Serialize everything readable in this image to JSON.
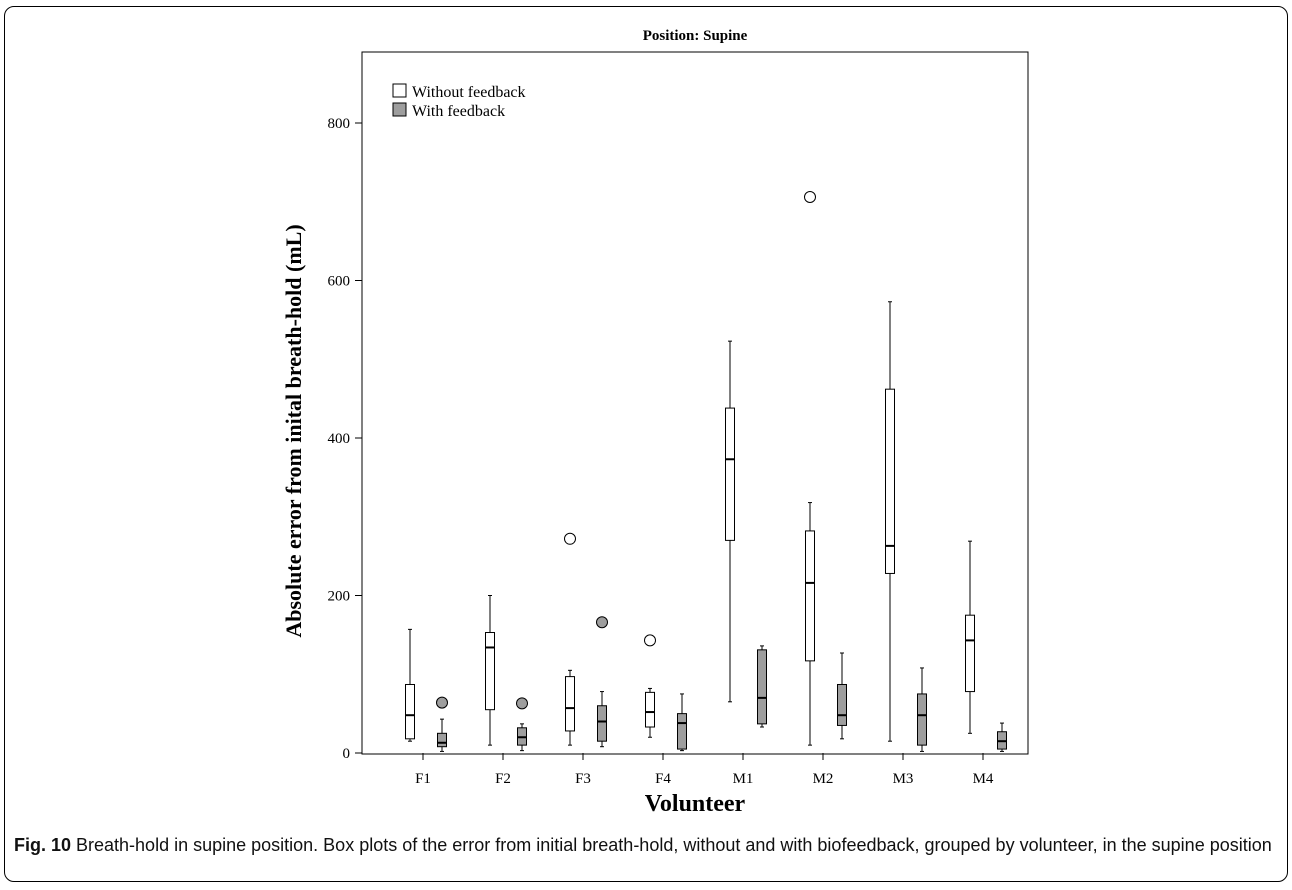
{
  "chart_data": {
    "type": "box",
    "title": "Position: Supine",
    "xlabel": "Volunteer",
    "ylabel": "Absolute error from inital breath-hold (mL)",
    "ylim": [
      0,
      890
    ],
    "yticks": [
      0,
      200,
      400,
      600,
      800
    ],
    "grid": false,
    "legend_position": "top-left",
    "categories": [
      "F1",
      "F2",
      "F3",
      "F4",
      "M1",
      "M2",
      "M3",
      "M4"
    ],
    "series": [
      {
        "name": "Without feedback",
        "color": "#ffffff",
        "boxes": [
          {
            "min": 15,
            "q1": 18,
            "median": 48,
            "q3": 87,
            "max": 157,
            "outliers": []
          },
          {
            "min": 10,
            "q1": 55,
            "median": 134,
            "q3": 153,
            "max": 200,
            "outliers": []
          },
          {
            "min": 10,
            "q1": 28,
            "median": 57,
            "q3": 97,
            "max": 105,
            "outliers": [
              272
            ]
          },
          {
            "min": 20,
            "q1": 33,
            "median": 52,
            "q3": 77,
            "max": 82,
            "outliers": [
              143
            ]
          },
          {
            "min": 65,
            "q1": 270,
            "median": 373,
            "q3": 438,
            "max": 523,
            "outliers": []
          },
          {
            "min": 10,
            "q1": 117,
            "median": 216,
            "q3": 282,
            "max": 318,
            "outliers": [
              706
            ]
          },
          {
            "min": 15,
            "q1": 228,
            "median": 263,
            "q3": 462,
            "max": 573,
            "outliers": []
          },
          {
            "min": 25,
            "q1": 78,
            "median": 143,
            "q3": 175,
            "max": 269,
            "outliers": []
          }
        ]
      },
      {
        "name": "With feedback",
        "color": "#9e9e9e",
        "boxes": [
          {
            "min": 2,
            "q1": 8,
            "median": 13,
            "q3": 25,
            "max": 43,
            "outliers": [
              64
            ]
          },
          {
            "min": 3,
            "q1": 10,
            "median": 20,
            "q3": 32,
            "max": 37,
            "outliers": [
              63
            ]
          },
          {
            "min": 8,
            "q1": 15,
            "median": 40,
            "q3": 60,
            "max": 78,
            "outliers": [
              166
            ]
          },
          {
            "min": 3,
            "q1": 5,
            "median": 38,
            "q3": 50,
            "max": 75,
            "outliers": []
          },
          {
            "min": 33,
            "q1": 37,
            "median": 70,
            "q3": 131,
            "max": 136,
            "outliers": []
          },
          {
            "min": 18,
            "q1": 35,
            "median": 48,
            "q3": 87,
            "max": 127,
            "outliers": []
          },
          {
            "min": 2,
            "q1": 10,
            "median": 48,
            "q3": 75,
            "max": 108,
            "outliers": []
          },
          {
            "min": 2,
            "q1": 5,
            "median": 15,
            "q3": 27,
            "max": 38,
            "outliers": []
          }
        ]
      }
    ]
  },
  "caption": {
    "label": "Fig. 10",
    "text": " Breath-hold in supine position. Box plots of the error from initial breath-hold, without and with biofeedback, grouped by volunteer, in the supine position"
  }
}
